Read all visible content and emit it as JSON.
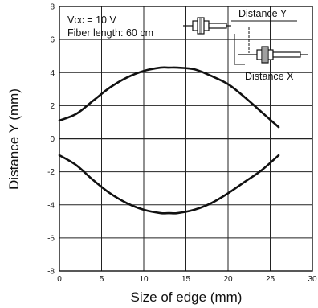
{
  "chart_data": {
    "type": "line",
    "title": "",
    "xlabel": "Size of edge (mm)",
    "ylabel": "Distance Y (mm)",
    "xlim": [
      0,
      30
    ],
    "ylim": [
      -8,
      8
    ],
    "xticks": [
      0,
      5,
      10,
      15,
      20,
      25,
      30
    ],
    "yticks": [
      -8,
      -6,
      -4,
      -2,
      0,
      2,
      4,
      6,
      8
    ],
    "grid": true,
    "annotations": {
      "conditions": [
        "Vcc = 10 V",
        "Fiber length: 60 cm"
      ],
      "distance_y": "Distance Y",
      "distance_x": "Distance X"
    },
    "series": [
      {
        "x": [
          0,
          2,
          4,
          6,
          8,
          10,
          12,
          13,
          14,
          16,
          18,
          20,
          22,
          24,
          26
        ],
        "y": [
          1.1,
          1.5,
          2.3,
          3.1,
          3.7,
          4.1,
          4.3,
          4.3,
          4.3,
          4.2,
          3.8,
          3.3,
          2.5,
          1.6,
          0.7
        ]
      },
      {
        "x": [
          0,
          2,
          4,
          6,
          8,
          10,
          12,
          13,
          14,
          16,
          18,
          20,
          22,
          24,
          26
        ],
        "y": [
          -1.0,
          -1.6,
          -2.5,
          -3.3,
          -3.9,
          -4.3,
          -4.5,
          -4.5,
          -4.5,
          -4.3,
          -3.9,
          -3.3,
          -2.6,
          -1.9,
          -1.0
        ]
      }
    ]
  }
}
